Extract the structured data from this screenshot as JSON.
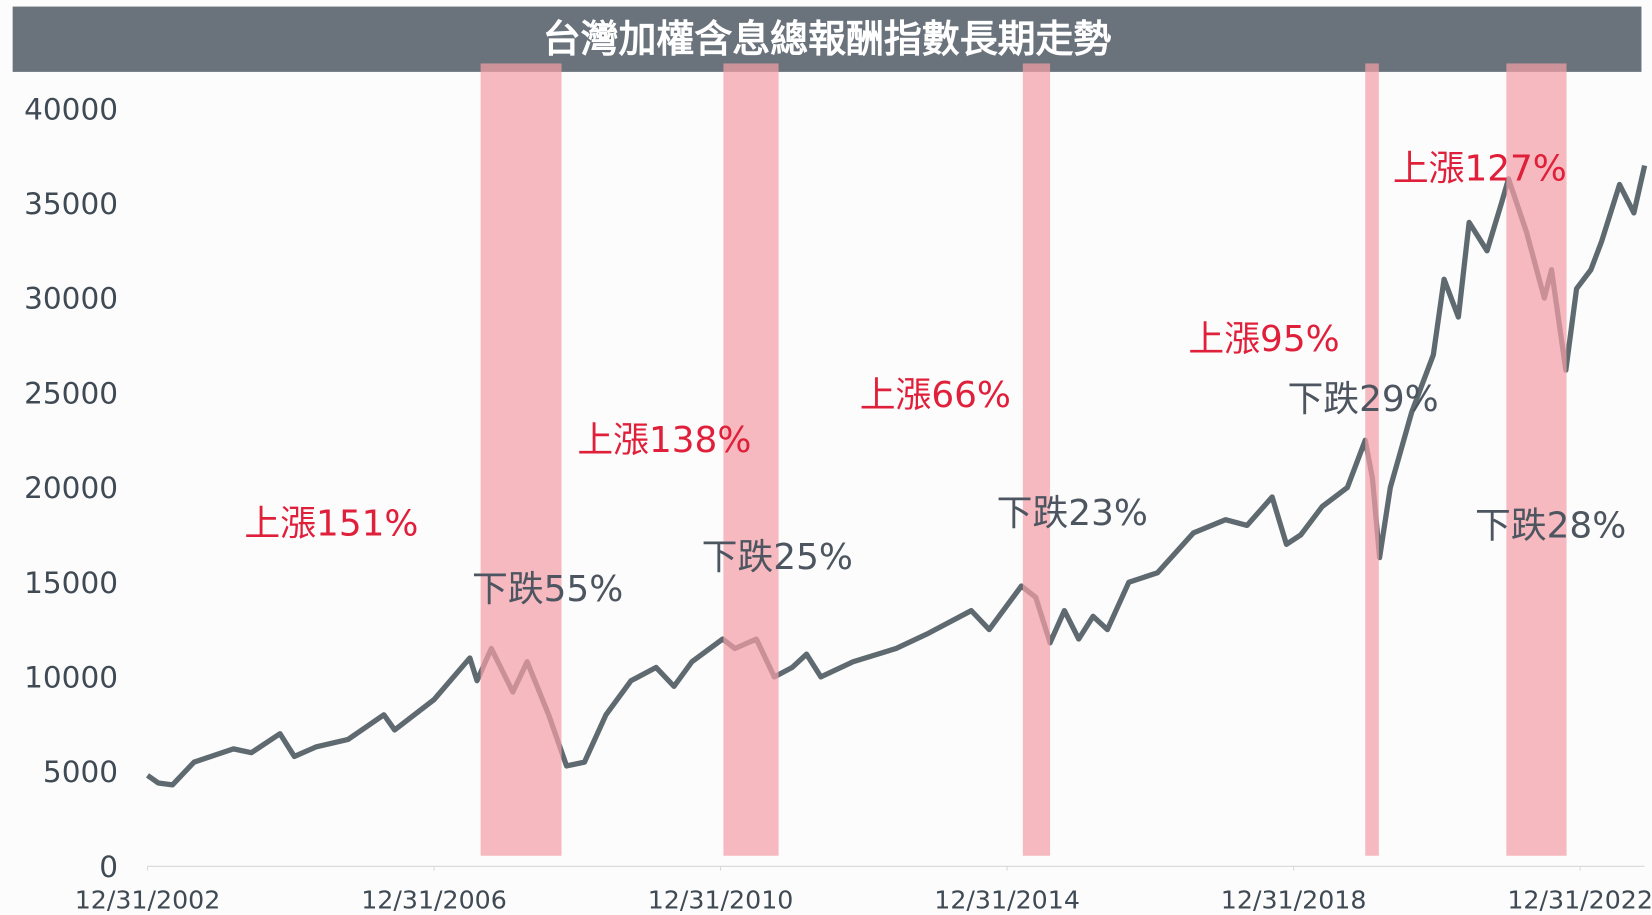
{
  "chart_data": {
    "type": "line",
    "title": "台灣加權含息總報酬指數長期走勢",
    "x": [
      2003.0,
      2003.15,
      2003.35,
      2003.65,
      2004.2,
      2004.45,
      2004.85,
      2005.05,
      2005.35,
      2005.8,
      2006.3,
      2006.45,
      2007.0,
      2007.5,
      2007.6,
      2007.8,
      2008.1,
      2008.3,
      2008.6,
      2008.85,
      2009.1,
      2009.4,
      2009.75,
      2010.1,
      2010.35,
      2010.6,
      2011.03,
      2011.2,
      2011.5,
      2011.75,
      2012.0,
      2012.2,
      2012.4,
      2012.85,
      2013.45,
      2013.9,
      2014.5,
      2014.75,
      2015.2,
      2015.4,
      2015.6,
      2015.8,
      2016.0,
      2016.2,
      2016.4,
      2016.7,
      2017.1,
      2017.6,
      2018.05,
      2018.35,
      2018.7,
      2018.9,
      2019.1,
      2019.4,
      2019.75,
      2020.0,
      2020.1,
      2020.2,
      2020.35,
      2020.65,
      2020.95,
      2021.1,
      2021.3,
      2021.45,
      2021.7,
      2021.9,
      2022.0,
      2022.25,
      2022.5,
      2022.6,
      2022.8,
      2022.95,
      2023.15,
      2023.3,
      2023.55,
      2023.75,
      2023.9
    ],
    "series": [
      {
        "name": "台灣加權含息總報酬指數",
        "color": "#5f6a70",
        "values": [
          4800,
          4400,
          4300,
          5500,
          6200,
          6000,
          7000,
          5800,
          6300,
          6700,
          8000,
          7200,
          8800,
          11000,
          9800,
          11500,
          9200,
          10800,
          8000,
          5300,
          5500,
          8000,
          9800,
          10500,
          9500,
          10800,
          12000,
          11500,
          12000,
          10000,
          10500,
          11200,
          10000,
          10800,
          11500,
          12300,
          13500,
          12500,
          14800,
          14200,
          11800,
          13500,
          12000,
          13200,
          12500,
          15000,
          15500,
          17600,
          18300,
          18000,
          19500,
          17000,
          17500,
          19000,
          20000,
          22500,
          20500,
          16300,
          20000,
          24000,
          27000,
          31000,
          29000,
          34000,
          32500,
          35000,
          36300,
          33500,
          30000,
          31500,
          26200,
          30500,
          31500,
          33000,
          36000,
          34500,
          37000
        ]
      }
    ],
    "xlim": [
      2003.0,
      2023.9
    ],
    "xticks": [
      {
        "value": 2003.0,
        "label": "12/31/2002"
      },
      {
        "value": 2007.0,
        "label": "12/31/2006"
      },
      {
        "value": 2011.0,
        "label": "12/31/2010"
      },
      {
        "value": 2015.0,
        "label": "12/31/2014"
      },
      {
        "value": 2019.0,
        "label": "12/31/2018"
      },
      {
        "value": 2023.0,
        "label": "12/31/2022"
      }
    ],
    "ylim": [
      0,
      40000
    ],
    "yticks": [
      0,
      5000,
      10000,
      15000,
      20000,
      25000,
      30000,
      35000,
      40000
    ],
    "shaded_periods": [
      [
        2007.65,
        2008.78
      ],
      [
        2011.04,
        2011.81
      ],
      [
        2015.22,
        2015.6
      ],
      [
        2020.0,
        2020.19
      ],
      [
        2021.97,
        2022.81
      ]
    ],
    "shade_color": "#f4a0a8",
    "annotations": [
      {
        "text": "上漲151%",
        "color": "#e0203a"
      },
      {
        "text": "下跌55%",
        "color": "#4d5660"
      },
      {
        "text": "上漲138%",
        "color": "#e0203a"
      },
      {
        "text": "下跌25%",
        "color": "#4d5660"
      },
      {
        "text": "上漲66%",
        "color": "#e0203a"
      },
      {
        "text": "下跌23%",
        "color": "#4d5660"
      },
      {
        "text": "上漲95%",
        "color": "#e0203a"
      },
      {
        "text": "下跌29%",
        "color": "#4d5660"
      },
      {
        "text": "上漲127%",
        "color": "#e0203a"
      },
      {
        "text": "下跌28%",
        "color": "#4d5660"
      }
    ]
  }
}
